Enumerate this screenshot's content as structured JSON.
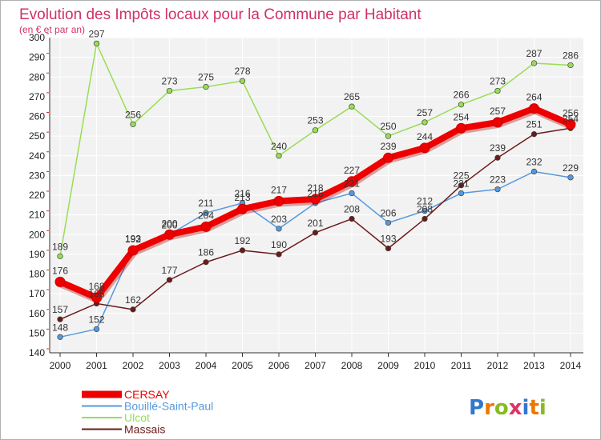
{
  "chart_data": {
    "type": "line",
    "title": "Evolution des Impôts locaux pour la Commune par Habitant",
    "subtitle": "(en € et par an)",
    "xlabel": "",
    "ylabel": "",
    "x": [
      "2000",
      "2001",
      "2002",
      "2003",
      "2004",
      "2005",
      "2006",
      "2007",
      "2008",
      "2009",
      "2010",
      "2011",
      "2012",
      "2013",
      "2014"
    ],
    "ylim": [
      140,
      300
    ],
    "yticks": [
      "140",
      "150",
      "160",
      "170",
      "180",
      "190",
      "200",
      "210",
      "220",
      "230",
      "240",
      "250",
      "260",
      "270",
      "280",
      "290",
      "300"
    ],
    "grid": true,
    "series": [
      {
        "name": "Ulcot",
        "color": "#99dd55",
        "values": [
          189,
          297,
          256,
          273,
          275,
          278,
          240,
          253,
          265,
          250,
          257,
          266,
          273,
          287,
          286
        ]
      },
      {
        "name": "Bouillé-Saint-Paul",
        "color": "#5599dd",
        "values": [
          148,
          152,
          193,
          200,
          211,
          216,
          203,
          216,
          221,
          206,
          212,
          221,
          223,
          232,
          229
        ]
      },
      {
        "name": "Massais",
        "color": "#6b1a1a",
        "values": [
          157,
          165,
          162,
          177,
          186,
          192,
          190,
          201,
          208,
          193,
          208,
          225,
          239,
          251,
          254
        ]
      },
      {
        "name": "CERSAY",
        "color": "#ee0000",
        "values": [
          176,
          168,
          192,
          200,
          204,
          213,
          217,
          218,
          227,
          239,
          244,
          254,
          257,
          264,
          256
        ]
      }
    ],
    "legend": {
      "position": "bottom-left",
      "items": [
        {
          "name": "CERSAY",
          "color": "#ee0000"
        },
        {
          "name": "Bouillé-Saint-Paul",
          "color": "#5599dd"
        },
        {
          "name": "Ulcot",
          "color": "#99dd55"
        },
        {
          "name": "Massais",
          "color": "#6b1a1a"
        }
      ]
    }
  },
  "logo": {
    "letters": [
      "P",
      "r",
      "o",
      "x",
      "i",
      "t",
      "i"
    ],
    "colors": [
      "#3377cc",
      "#ee7700",
      "#88bb22",
      "#dd3366",
      "#3377cc",
      "#ee7700",
      "#88bb22"
    ]
  }
}
